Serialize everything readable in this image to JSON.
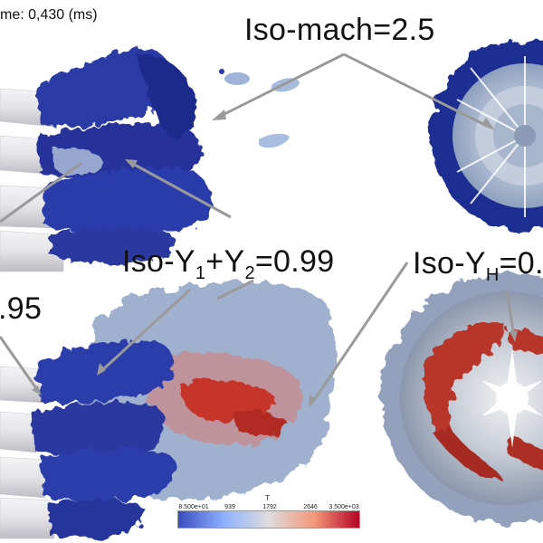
{
  "time_label": "me: 0,430 (ms)",
  "labels": {
    "iso_mach": "Iso-mach=2.5",
    "iso_y_sum_prefix": "Iso-Y",
    "iso_y_sum_sub1": "1",
    "iso_y_sum_plus": "+Y",
    "iso_y_sum_sub2": "2",
    "iso_y_sum_value": "=0.99",
    "iso_yh_prefix": "Iso-Y",
    "iso_yh_sub": "H",
    "iso_yh_value": "=0.",
    "iso_partial": ".95"
  },
  "colorbar": {
    "title": "T",
    "ticks": [
      "8.500e+01",
      "939",
      "1792",
      "2646",
      "3.500e+03"
    ],
    "colors": [
      "#3a4cc0",
      "#8db0fe",
      "#dddddd",
      "#f4987a",
      "#b40426"
    ]
  },
  "colors": {
    "dark_blue": "#23308e",
    "mid_blue": "#3a4cc0",
    "steel_blue": "#8fa4c4",
    "red": "#c43a2c",
    "grey_shell": "#d9d9dd"
  }
}
